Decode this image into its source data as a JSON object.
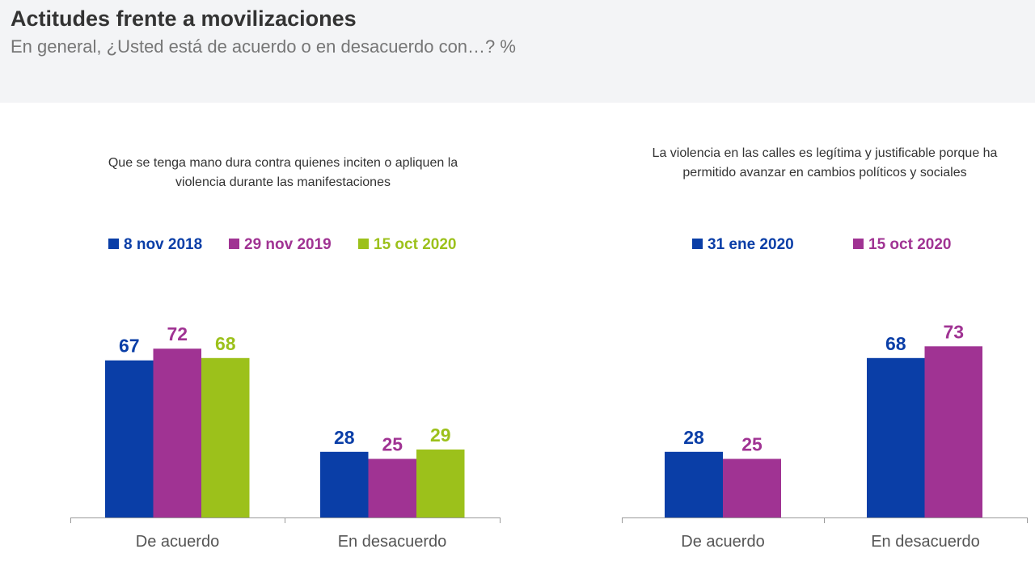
{
  "header": {
    "title": "Actitudes frente a movilizaciones",
    "subtitle": "En general, ¿Usted está de acuerdo o en desacuerdo con…? %"
  },
  "colors": {
    "blue": "#0a3ea7",
    "purple": "#a03393",
    "green": "#9cc11b",
    "axis": "#9a9a9a"
  },
  "chart_data": [
    {
      "type": "bar",
      "title": "Que se tenga mano dura contra quienes inciten o apliquen la violencia durante las manifestaciones",
      "categories": [
        "De acuerdo",
        "En desacuerdo"
      ],
      "series": [
        {
          "name": "8 nov 2018",
          "color": "#0a3ea7",
          "values": [
            67,
            28
          ]
        },
        {
          "name": "29 nov 2019",
          "color": "#a03393",
          "values": [
            72,
            25
          ]
        },
        {
          "name": "15 oct 2020",
          "color": "#9cc11b",
          "values": [
            68,
            29
          ]
        }
      ],
      "ylim": [
        0,
        100
      ],
      "grid": false,
      "legend": "top"
    },
    {
      "type": "bar",
      "title": "La violencia en las calles es legítima y justificable porque ha permitido avanzar en cambios políticos y sociales",
      "categories": [
        "De acuerdo",
        "En desacuerdo"
      ],
      "series": [
        {
          "name": "31 ene 2020",
          "color": "#0a3ea7",
          "values": [
            28,
            68
          ]
        },
        {
          "name": "15 oct 2020",
          "color": "#a03393",
          "values": [
            25,
            73
          ]
        }
      ],
      "ylim": [
        0,
        100
      ],
      "grid": false,
      "legend": "top"
    }
  ]
}
